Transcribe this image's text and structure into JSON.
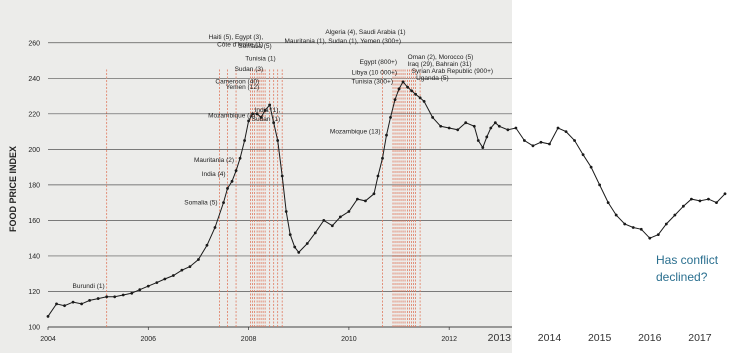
{
  "chart_data": {
    "type": "line",
    "ylabel": "FOOD PRICE INDEX",
    "ylim": [
      100,
      270
    ],
    "yticks": [
      "100",
      "120",
      "140",
      "160",
      "180",
      "200",
      "220",
      "240",
      "260"
    ],
    "xlim": [
      2004,
      2017.5
    ],
    "xticks_original": [
      "2004",
      "2006",
      "2008",
      "2010",
      "2012"
    ],
    "xticks_extended": [
      "2013",
      "2014",
      "2015",
      "2016",
      "2017"
    ],
    "annotation_text": "Has conflict declined?",
    "colors": {
      "original_background": "#ececea",
      "line": "#1a1a1a",
      "event_lines": "#e07a5f",
      "grid": "#555555",
      "question": "#2a6f8f"
    },
    "series": [
      {
        "x": [
          2004.0,
          2004.17,
          2004.33,
          2004.5,
          2004.67,
          2004.83,
          2005.0,
          2005.17,
          2005.33,
          2005.5,
          2005.67,
          2005.83,
          2006.0,
          2006.17,
          2006.33,
          2006.5,
          2006.67,
          2006.83,
          2007.0,
          2007.17,
          2007.33,
          2007.5,
          2007.58,
          2007.67,
          2007.75,
          2007.83,
          2007.92,
          2008.0,
          2008.08,
          2008.17,
          2008.25,
          2008.33,
          2008.42,
          2008.5,
          2008.58,
          2008.67,
          2008.75,
          2008.83,
          2008.92,
          2009.0,
          2009.17,
          2009.33,
          2009.5,
          2009.67,
          2009.83,
          2010.0,
          2010.17,
          2010.33,
          2010.5,
          2010.58,
          2010.67,
          2010.75,
          2010.83,
          2010.92,
          2011.0,
          2011.08,
          2011.17,
          2011.25,
          2011.33,
          2011.42,
          2011.5,
          2011.67,
          2011.83,
          2012.0,
          2012.17,
          2012.33,
          2012.5,
          2012.58,
          2012.67,
          2012.75,
          2012.83,
          2012.92,
          2013.0,
          2013.17,
          2013.33,
          2013.5,
          2013.67,
          2013.83,
          2014.0,
          2014.17,
          2014.33,
          2014.5,
          2014.67,
          2014.83,
          2015.0,
          2015.17,
          2015.33,
          2015.5,
          2015.67,
          2015.83,
          2016.0,
          2016.17,
          2016.33,
          2016.5,
          2016.67,
          2016.83,
          2017.0,
          2017.17,
          2017.33,
          2017.5
        ],
        "values": [
          106,
          113,
          112,
          114,
          113,
          115,
          116,
          117,
          117,
          118,
          119,
          121,
          123,
          125,
          127,
          129,
          132,
          134,
          138,
          146,
          156,
          170,
          178,
          182,
          188,
          195,
          205,
          216,
          220,
          220,
          218,
          222,
          225,
          215,
          205,
          185,
          165,
          152,
          145,
          142,
          147,
          153,
          160,
          157,
          162,
          165,
          172,
          171,
          175,
          185,
          195,
          208,
          218,
          228,
          234,
          238,
          235,
          233,
          231,
          229,
          227,
          218,
          213,
          212,
          211,
          215,
          213,
          205,
          201,
          207,
          212,
          215,
          213,
          211,
          212,
          205,
          202,
          204,
          203,
          212,
          210,
          205,
          197,
          190,
          180,
          170,
          163,
          158,
          156,
          155,
          150,
          152,
          158,
          163,
          168,
          172,
          171,
          172,
          170,
          175
        ]
      }
    ],
    "annotations": [
      {
        "text": "Burundi (1)",
        "x": 2005.17,
        "y": 122
      },
      {
        "text": "Somalia (5)",
        "x": 2007.42,
        "y": 169
      },
      {
        "text": "India (4)",
        "x": 2007.58,
        "y": 185
      },
      {
        "text": "Mauritania (2)",
        "x": 2007.75,
        "y": 193
      },
      {
        "text": "Mozambique (4)",
        "x": 2008.17,
        "y": 218
      },
      {
        "text": "Yemen (12)",
        "x": 2008.25,
        "y": 234
      },
      {
        "text": "Cameroon (40)",
        "x": 2008.25,
        "y": 237
      },
      {
        "text": "Sudan (3)",
        "x": 2008.33,
        "y": 244
      },
      {
        "text": "Côte d'Ivoire (1)",
        "x": 2008.33,
        "y": 258
      },
      {
        "text": "Haiti (5), Egypt (3),",
        "x": 2008.33,
        "y": 262
      },
      {
        "text": "Somalia (5)",
        "x": 2008.5,
        "y": 257
      },
      {
        "text": "Tunisia (1)",
        "x": 2008.58,
        "y": 250
      },
      {
        "text": "India (1),",
        "x": 2008.67,
        "y": 221
      },
      {
        "text": "Sudan (1)",
        "x": 2008.67,
        "y": 216
      },
      {
        "text": "Mozambique (13)",
        "x": 2010.67,
        "y": 209
      },
      {
        "text": "Tunisia (300+)",
        "x": 2010.92,
        "y": 237
      },
      {
        "text": "Libya (10 000+)",
        "x": 2011.0,
        "y": 242
      },
      {
        "text": "Egypt (800+)",
        "x": 2011.0,
        "y": 248
      },
      {
        "text": "Mauritania (1), Sudan (1), Yemen (300+)",
        "x": 2011.08,
        "y": 260
      },
      {
        "text": "Algeria (4), Saudi Arabia (1)",
        "x": 2011.17,
        "y": 265
      },
      {
        "text": "Oman (2), Morocco (5)",
        "x": 2011.25,
        "y": 251
      },
      {
        "text": "Iraq (29), Bahrain (31)",
        "x": 2011.25,
        "y": 247
      },
      {
        "text": "Syrian Arab Republic (900+)",
        "x": 2011.33,
        "y": 243
      },
      {
        "text": "Uganda (5)",
        "x": 2011.42,
        "y": 239
      }
    ],
    "event_dates": [
      2005.17,
      2007.42,
      2007.58,
      2007.75,
      2008.04,
      2008.08,
      2008.12,
      2008.17,
      2008.21,
      2008.25,
      2008.29,
      2008.33,
      2008.42,
      2008.5,
      2008.58,
      2008.67,
      2010.67,
      2010.88,
      2010.92,
      2010.96,
      2011.0,
      2011.04,
      2011.08,
      2011.12,
      2011.17,
      2011.21,
      2011.25,
      2011.29,
      2011.33,
      2011.42
    ]
  }
}
